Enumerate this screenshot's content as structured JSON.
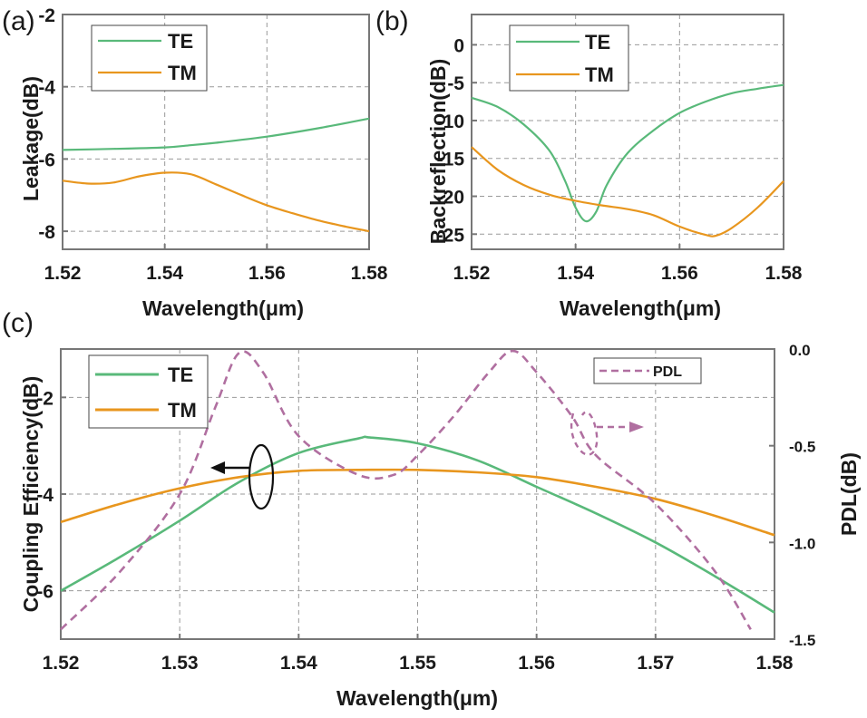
{
  "colors": {
    "TE": "#59b97a",
    "TM": "#e8961e",
    "PDL": "#b06fa0",
    "axis": "#777777"
  },
  "chart_data": [
    {
      "panel": "(a)",
      "type": "line",
      "xlabel": "Wavelength(μm)",
      "ylabel": "Leakage(dB)",
      "xlim": [
        1.52,
        1.58
      ],
      "ylim": [
        -8.5,
        -2
      ],
      "xticks": [
        "1.52",
        "1.54",
        "1.56",
        "1.58"
      ],
      "yticks": [
        "-2",
        "-4",
        "-6",
        "-8"
      ],
      "legend": [
        "TE",
        "TM"
      ],
      "legend_position": "top-left",
      "series": [
        {
          "name": "TE",
          "x": [
            1.52,
            1.53,
            1.54,
            1.545,
            1.55,
            1.56,
            1.57,
            1.58
          ],
          "y": [
            -5.75,
            -5.72,
            -5.68,
            -5.62,
            -5.55,
            -5.38,
            -5.15,
            -4.88
          ]
        },
        {
          "name": "TM",
          "x": [
            1.52,
            1.525,
            1.53,
            1.535,
            1.54,
            1.545,
            1.55,
            1.555,
            1.56,
            1.565,
            1.57,
            1.575,
            1.58
          ],
          "y": [
            -6.6,
            -6.68,
            -6.65,
            -6.48,
            -6.38,
            -6.42,
            -6.7,
            -7.0,
            -7.28,
            -7.5,
            -7.7,
            -7.86,
            -8.0
          ]
        }
      ]
    },
    {
      "panel": "(b)",
      "type": "line",
      "xlabel": "Wavelength(μm)",
      "ylabel": "Backreflection(dB)",
      "xlim": [
        1.52,
        1.58
      ],
      "ylim": [
        -27,
        4
      ],
      "xticks": [
        "1.52",
        "1.54",
        "1.56",
        "1.58"
      ],
      "yticks": [
        "0",
        "-5",
        "-10",
        "-15",
        "-20",
        "-25"
      ],
      "legend": [
        "TE",
        "TM"
      ],
      "legend_position": "top-left",
      "series": [
        {
          "name": "TE",
          "x": [
            1.52,
            1.525,
            1.53,
            1.535,
            1.538,
            1.54,
            1.542,
            1.544,
            1.546,
            1.55,
            1.555,
            1.56,
            1.565,
            1.57,
            1.575,
            1.58
          ],
          "y": [
            -7.0,
            -8.2,
            -10.5,
            -14.0,
            -18.0,
            -21.5,
            -23.3,
            -22.0,
            -18.5,
            -14.3,
            -11.3,
            -9.0,
            -7.5,
            -6.4,
            -5.8,
            -5.3
          ]
        },
        {
          "name": "TM",
          "x": [
            1.52,
            1.525,
            1.53,
            1.535,
            1.54,
            1.545,
            1.55,
            1.555,
            1.56,
            1.565,
            1.567,
            1.57,
            1.575,
            1.58
          ],
          "y": [
            -13.5,
            -16.5,
            -18.5,
            -19.8,
            -20.6,
            -21.2,
            -21.7,
            -22.5,
            -24.0,
            -25.1,
            -25.2,
            -24.2,
            -21.5,
            -18.0
          ]
        }
      ]
    },
    {
      "panel": "(c)",
      "type": "line",
      "xlabel": "Wavelength(μm)",
      "ylabel": "Coupling Efficiency(dB)",
      "y2label": "PDL(dB)",
      "xlim": [
        1.52,
        1.58
      ],
      "ylim": [
        -7,
        -1
      ],
      "y2lim": [
        -1.5,
        0
      ],
      "xticks": [
        "1.52",
        "1.53",
        "1.54",
        "1.55",
        "1.56",
        "1.57",
        "1.58"
      ],
      "yticks": [
        "-2",
        "-4",
        "-6"
      ],
      "y2ticks": [
        "0.0",
        "-0.5",
        "-1.0",
        "-1.5"
      ],
      "legend": [
        "TE",
        "TM"
      ],
      "legend_position": "top-left",
      "legend2": [
        "PDL"
      ],
      "legend2_position": "top-right",
      "series": [
        {
          "name": "TE",
          "axis": "left",
          "x": [
            1.52,
            1.525,
            1.53,
            1.535,
            1.54,
            1.545,
            1.546,
            1.55,
            1.555,
            1.56,
            1.565,
            1.57,
            1.575,
            1.58
          ],
          "y": [
            -6.0,
            -5.3,
            -4.55,
            -3.75,
            -3.15,
            -2.85,
            -2.83,
            -2.95,
            -3.3,
            -3.85,
            -4.4,
            -5.0,
            -5.7,
            -6.45
          ]
        },
        {
          "name": "TM",
          "axis": "left",
          "x": [
            1.52,
            1.525,
            1.53,
            1.535,
            1.54,
            1.545,
            1.55,
            1.555,
            1.56,
            1.565,
            1.57,
            1.575,
            1.58
          ],
          "y": [
            -4.58,
            -4.2,
            -3.88,
            -3.65,
            -3.52,
            -3.5,
            -3.5,
            -3.55,
            -3.65,
            -3.85,
            -4.1,
            -4.45,
            -4.85
          ]
        },
        {
          "name": "PDL",
          "axis": "right",
          "style": "dashed",
          "x": [
            1.52,
            1.525,
            1.53,
            1.533,
            1.535,
            1.537,
            1.54,
            1.545,
            1.548,
            1.55,
            1.553,
            1.556,
            1.558,
            1.56,
            1.563,
            1.565,
            1.57,
            1.575,
            1.578
          ],
          "y": [
            -1.45,
            -1.15,
            -0.75,
            -0.3,
            -0.02,
            -0.12,
            -0.45,
            -0.65,
            -0.65,
            -0.55,
            -0.35,
            -0.12,
            -0.01,
            -0.12,
            -0.35,
            -0.55,
            -0.8,
            -1.15,
            -1.45
          ]
        }
      ],
      "annotations": [
        "left-arrow (TE/TM -> left axis)",
        "right-arrow (PDL -> right axis)"
      ]
    }
  ]
}
